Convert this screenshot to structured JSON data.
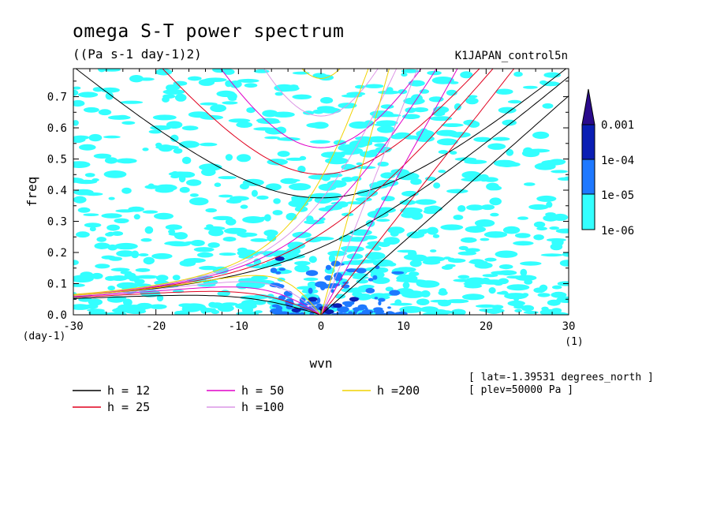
{
  "title": "omega S-T power spectrum",
  "subtitle": "((Pa s-1 day-1)2)",
  "run_name": "K1JAPAN_control5n",
  "info_lines": [
    "[ lat=-1.39531 degrees_north ]",
    "[ plev=50000 Pa ]"
  ],
  "colorbar": {
    "levels": [
      "1e-06",
      "1e-05",
      "1e-04",
      "0.001"
    ],
    "colors": [
      "#33FFFF",
      "#1E78FF",
      "#0A1EB4",
      "#2A0A8C"
    ]
  },
  "chart_data": {
    "type": "heatmap",
    "title": "omega S-T power spectrum",
    "subtitle": "((Pa s-1 day-1)2)",
    "xlabel": "wvn",
    "xunit": "(1)",
    "ylabel": "freq",
    "yunit": "(day-1)",
    "xlim": [
      -30,
      30
    ],
    "ylim": [
      0.0,
      0.79
    ],
    "xticks": [
      -30,
      -20,
      -10,
      0,
      10,
      20,
      30
    ],
    "yticks": [
      0.0,
      0.1,
      0.2,
      0.3,
      0.4,
      0.5,
      0.6,
      0.7
    ],
    "xtick_labels": [
      "-30",
      "-20",
      "-10",
      "0",
      "10",
      "20",
      "30"
    ],
    "ytick_labels": [
      "0.0",
      "0.1",
      "0.2",
      "0.3",
      "0.4",
      "0.5",
      "0.6",
      "0.7"
    ],
    "shading_levels": [
      1e-06,
      1e-05,
      0.0001,
      0.001
    ],
    "shading_colors": [
      "#33FFFF",
      "#1E78FF",
      "#0A1EB4",
      "#2A0A8C"
    ],
    "dispersion_curves": [
      {
        "label": "h = 12",
        "h": 12,
        "color": "#000000"
      },
      {
        "label": "h = 25",
        "h": 25,
        "color": "#E0001E"
      },
      {
        "label": "h = 50",
        "h": 50,
        "color": "#E000C8"
      },
      {
        "label": "h =100",
        "h": 100,
        "color": "#DC96E6"
      },
      {
        "label": "h =200",
        "h": 200,
        "color": "#F0D200"
      }
    ],
    "legend_position": "bottom",
    "annotations": [
      "[ lat=-1.39531 degrees_north ]",
      "[ plev=50000 Pa ]"
    ]
  }
}
